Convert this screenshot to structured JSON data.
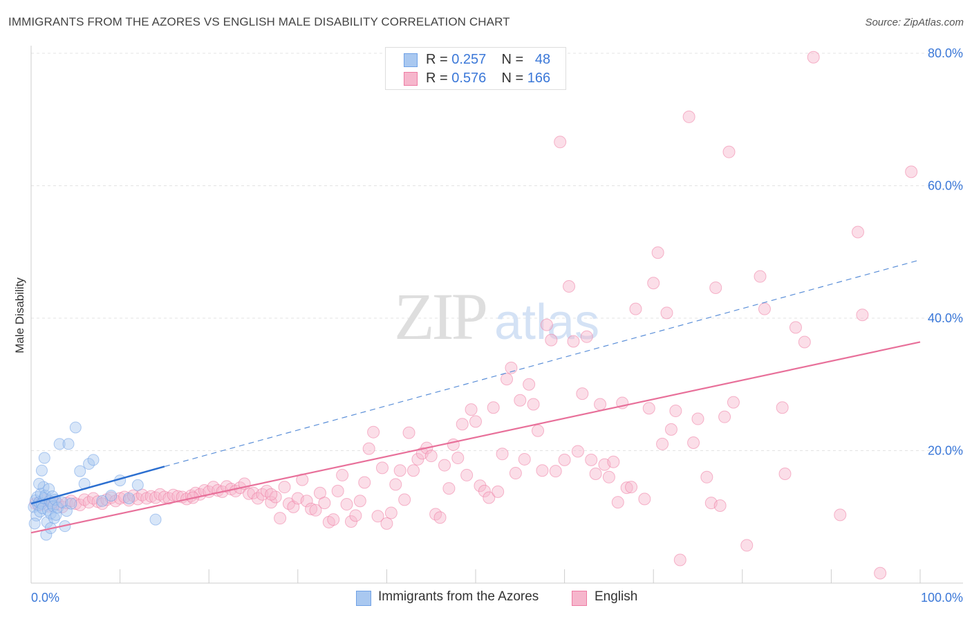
{
  "title": "IMMIGRANTS FROM THE AZORES VS ENGLISH MALE DISABILITY CORRELATION CHART",
  "source": "Source: ZipAtlas.com",
  "watermark": {
    "zip": "ZIP",
    "atlas": "atlas"
  },
  "legend": {
    "rows": [
      {
        "r_label": "R = ",
        "r_value": "0.257",
        "n_label": "N = ",
        "n_value": "48",
        "color": "#a9c8f0"
      },
      {
        "r_label": "R = ",
        "r_value": "0.576",
        "n_label": "N = ",
        "n_value": "166",
        "color": "#f6b6cc"
      }
    ]
  },
  "bottom_legend": [
    {
      "label": "Immigrants from the Azores",
      "color": "#a9c8f0"
    },
    {
      "label": "English",
      "color": "#f6b6cc"
    }
  ],
  "chart_data": {
    "type": "scatter",
    "title": "IMMIGRANTS FROM THE AZORES VS ENGLISH MALE DISABILITY CORRELATION CHART",
    "xlabel": "",
    "ylabel": "Male Disability",
    "xlim": [
      0,
      100
    ],
    "ylim": [
      0,
      80
    ],
    "x_tick_labels": [
      "0.0%",
      "100.0%"
    ],
    "y_ticks": [
      20,
      40,
      60,
      80
    ],
    "y_tick_labels": [
      "20.0%",
      "40.0%",
      "60.0%",
      "80.0%"
    ],
    "grid": true,
    "series": [
      {
        "name": "Immigrants from the Azores",
        "color": "#6fa1e6",
        "fill": "#a9c8f0",
        "trend": {
          "x": [
            0,
            15
          ],
          "y": [
            12.0,
            17.6
          ],
          "dashed_to": [
            100,
            48.8
          ]
        },
        "points": [
          [
            0.3,
            11.5
          ],
          [
            0.5,
            12.5
          ],
          [
            0.6,
            10.2
          ],
          [
            0.7,
            13.0
          ],
          [
            0.8,
            11.8
          ],
          [
            0.9,
            12.2
          ],
          [
            1.0,
            10.8
          ],
          [
            1.1,
            13.5
          ],
          [
            1.2,
            12.0
          ],
          [
            1.3,
            11.3
          ],
          [
            1.4,
            14.5
          ],
          [
            1.5,
            12.8
          ],
          [
            1.6,
            13.2
          ],
          [
            1.7,
            7.3
          ],
          [
            1.8,
            9.2
          ],
          [
            1.9,
            11.0
          ],
          [
            2.0,
            14.2
          ],
          [
            2.1,
            12.4
          ],
          [
            2.2,
            10.5
          ],
          [
            2.3,
            12.0
          ],
          [
            2.4,
            13.1
          ],
          [
            2.5,
            11.6
          ],
          [
            2.6,
            9.8
          ],
          [
            2.7,
            12.6
          ],
          [
            2.8,
            10.3
          ],
          [
            3.0,
            11.4
          ],
          [
            3.2,
            21.0
          ],
          [
            3.5,
            12.2
          ],
          [
            3.8,
            8.6
          ],
          [
            4.0,
            10.9
          ],
          [
            4.2,
            21.0
          ],
          [
            4.5,
            12.0
          ],
          [
            5.0,
            23.5
          ],
          [
            5.5,
            16.9
          ],
          [
            6.0,
            15.0
          ],
          [
            6.5,
            18.0
          ],
          [
            7.0,
            18.6
          ],
          [
            8.0,
            12.4
          ],
          [
            9.0,
            13.2
          ],
          [
            10.0,
            15.5
          ],
          [
            11.0,
            12.8
          ],
          [
            12.0,
            14.8
          ],
          [
            14.0,
            9.6
          ],
          [
            1.5,
            18.9
          ],
          [
            1.2,
            17.0
          ],
          [
            0.4,
            9.0
          ],
          [
            0.9,
            15.0
          ],
          [
            2.2,
            8.3
          ]
        ]
      },
      {
        "name": "English",
        "color": "#ee7ba3",
        "fill": "#f6b6cc",
        "trend": {
          "x": [
            0,
            100
          ],
          "y": [
            7.6,
            36.4
          ]
        },
        "points": [
          [
            0.5,
            12.0
          ],
          [
            1.0,
            11.8
          ],
          [
            1.5,
            12.5
          ],
          [
            2.0,
            11.6
          ],
          [
            2.5,
            12.2
          ],
          [
            3.0,
            12.0
          ],
          [
            3.5,
            11.5
          ],
          [
            4.0,
            12.1
          ],
          [
            4.5,
            12.4
          ],
          [
            5.0,
            12.0
          ],
          [
            5.5,
            11.8
          ],
          [
            6.0,
            12.6
          ],
          [
            6.5,
            12.2
          ],
          [
            7.0,
            12.8
          ],
          [
            7.5,
            12.3
          ],
          [
            8.0,
            12.0
          ],
          [
            8.5,
            12.6
          ],
          [
            9.0,
            12.9
          ],
          [
            9.5,
            12.4
          ],
          [
            10.0,
            12.8
          ],
          [
            10.5,
            13.0
          ],
          [
            11.0,
            12.5
          ],
          [
            11.5,
            13.2
          ],
          [
            12.0,
            12.7
          ],
          [
            12.5,
            13.3
          ],
          [
            13.0,
            12.8
          ],
          [
            13.5,
            13.1
          ],
          [
            14.0,
            12.9
          ],
          [
            14.5,
            13.4
          ],
          [
            15.0,
            13.0
          ],
          [
            15.5,
            12.8
          ],
          [
            16.0,
            13.3
          ],
          [
            16.5,
            13.1
          ],
          [
            17.0,
            13.0
          ],
          [
            17.5,
            12.7
          ],
          [
            18.0,
            13.2
          ],
          [
            18.5,
            13.6
          ],
          [
            19.0,
            13.4
          ],
          [
            19.5,
            14.0
          ],
          [
            20.0,
            13.8
          ],
          [
            20.5,
            14.5
          ],
          [
            21.0,
            14.0
          ],
          [
            21.5,
            13.8
          ],
          [
            22.0,
            14.6
          ],
          [
            22.5,
            14.2
          ],
          [
            23.0,
            13.9
          ],
          [
            23.5,
            14.4
          ],
          [
            24.0,
            15.0
          ],
          [
            24.5,
            13.5
          ],
          [
            25.0,
            13.6
          ],
          [
            25.5,
            12.8
          ],
          [
            26.0,
            13.4
          ],
          [
            26.5,
            13.9
          ],
          [
            27.0,
            12.2
          ],
          [
            27.5,
            13.0
          ],
          [
            28.0,
            9.8
          ],
          [
            28.5,
            14.5
          ],
          [
            29.0,
            12.0
          ],
          [
            29.5,
            11.5
          ],
          [
            30.0,
            12.8
          ],
          [
            30.5,
            15.6
          ],
          [
            31.0,
            12.4
          ],
          [
            31.5,
            11.2
          ],
          [
            32.0,
            11.0
          ],
          [
            32.5,
            13.6
          ],
          [
            33.0,
            12.1
          ],
          [
            33.5,
            9.2
          ],
          [
            34.0,
            9.6
          ],
          [
            34.5,
            13.9
          ],
          [
            35.0,
            16.3
          ],
          [
            35.5,
            11.9
          ],
          [
            36.0,
            9.3
          ],
          [
            36.5,
            10.2
          ],
          [
            37.0,
            12.4
          ],
          [
            37.5,
            15.2
          ],
          [
            38.0,
            20.3
          ],
          [
            38.5,
            22.8
          ],
          [
            39.0,
            10.1
          ],
          [
            39.5,
            17.4
          ],
          [
            40.0,
            9.0
          ],
          [
            40.5,
            10.6
          ],
          [
            41.0,
            14.9
          ],
          [
            41.5,
            17.0
          ],
          [
            42.0,
            12.6
          ],
          [
            42.5,
            22.7
          ],
          [
            43.0,
            17.0
          ],
          [
            43.5,
            18.7
          ],
          [
            44.0,
            19.6
          ],
          [
            44.5,
            20.4
          ],
          [
            45.0,
            19.2
          ],
          [
            45.5,
            10.4
          ],
          [
            46.0,
            9.9
          ],
          [
            46.5,
            17.8
          ],
          [
            47.0,
            14.3
          ],
          [
            47.5,
            20.9
          ],
          [
            48.0,
            18.9
          ],
          [
            48.5,
            24.0
          ],
          [
            49.0,
            16.3
          ],
          [
            49.5,
            26.2
          ],
          [
            50.0,
            24.4
          ],
          [
            50.5,
            14.7
          ],
          [
            51.0,
            13.9
          ],
          [
            51.5,
            12.9
          ],
          [
            52.0,
            26.5
          ],
          [
            52.5,
            13.8
          ],
          [
            53.0,
            19.5
          ],
          [
            53.5,
            30.8
          ],
          [
            54.0,
            32.5
          ],
          [
            54.5,
            16.6
          ],
          [
            55.0,
            27.6
          ],
          [
            55.5,
            18.7
          ],
          [
            56.0,
            30.0
          ],
          [
            56.5,
            27.0
          ],
          [
            57.0,
            23.0
          ],
          [
            57.5,
            17.0
          ],
          [
            58.0,
            39.0
          ],
          [
            58.5,
            36.7
          ],
          [
            59.0,
            16.9
          ],
          [
            59.5,
            66.6
          ],
          [
            60.0,
            18.6
          ],
          [
            60.5,
            44.8
          ],
          [
            61.0,
            36.5
          ],
          [
            61.5,
            19.9
          ],
          [
            62.0,
            28.6
          ],
          [
            62.5,
            37.2
          ],
          [
            63.0,
            18.6
          ],
          [
            63.5,
            16.5
          ],
          [
            64.0,
            27.0
          ],
          [
            64.5,
            17.9
          ],
          [
            65.0,
            16.0
          ],
          [
            65.5,
            18.3
          ],
          [
            66.0,
            12.2
          ],
          [
            66.5,
            27.2
          ],
          [
            67.0,
            14.4
          ],
          [
            67.5,
            14.5
          ],
          [
            68.0,
            41.4
          ],
          [
            69.0,
            12.7
          ],
          [
            69.5,
            26.4
          ],
          [
            70.0,
            45.3
          ],
          [
            70.5,
            49.9
          ],
          [
            71.0,
            21.0
          ],
          [
            71.5,
            40.8
          ],
          [
            72.0,
            23.2
          ],
          [
            72.5,
            26.0
          ],
          [
            73.0,
            3.5
          ],
          [
            74.0,
            70.4
          ],
          [
            74.5,
            21.2
          ],
          [
            75.0,
            24.8
          ],
          [
            76.0,
            16.0
          ],
          [
            76.5,
            12.1
          ],
          [
            77.0,
            44.6
          ],
          [
            77.5,
            11.7
          ],
          [
            78.0,
            25.1
          ],
          [
            78.5,
            65.1
          ],
          [
            79.0,
            27.3
          ],
          [
            80.5,
            5.7
          ],
          [
            82.0,
            46.3
          ],
          [
            82.5,
            41.4
          ],
          [
            84.5,
            26.5
          ],
          [
            84.8,
            16.5
          ],
          [
            86.0,
            38.6
          ],
          [
            87.0,
            36.4
          ],
          [
            88.0,
            79.4
          ],
          [
            91.0,
            10.3
          ],
          [
            93.0,
            53.0
          ],
          [
            93.5,
            40.5
          ],
          [
            95.5,
            1.5
          ],
          [
            99.0,
            62.1
          ],
          [
            27.0,
            13.4
          ],
          [
            18.2,
            12.9
          ]
        ]
      }
    ]
  }
}
